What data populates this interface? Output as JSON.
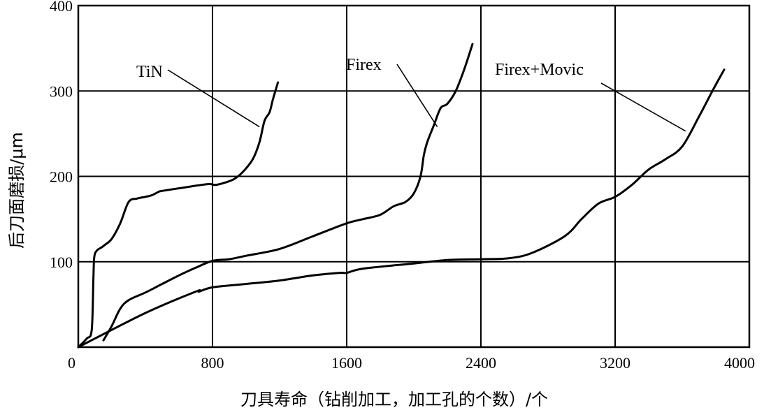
{
  "chart_data": {
    "type": "line",
    "xlabel": "刀具寿命（钻削加工，加工孔的个数）/个",
    "ylabel": "后刀面磨损/μm",
    "xlim": [
      0,
      4000
    ],
    "ylim": [
      0,
      400
    ],
    "x_ticks": [
      0,
      800,
      1600,
      2400,
      3200,
      4000
    ],
    "y_ticks": [
      100,
      200,
      300,
      400
    ],
    "x_tick_labels": [
      "0",
      "800",
      "1600",
      "2400",
      "3200",
      "4000"
    ],
    "y_tick_labels": [
      "100",
      "200",
      "300",
      "400"
    ],
    "grid": true,
    "series": [
      {
        "name": "TiN",
        "x": [
          0,
          50,
          80,
          90,
          95,
          110,
          140,
          160,
          200,
          250,
          300,
          350,
          400,
          440,
          480,
          500,
          600,
          700,
          780,
          820,
          880,
          930,
          980,
          1040,
          1080,
          1110,
          1140,
          1160,
          1190
        ],
        "y": [
          0,
          10,
          20,
          80,
          105,
          113,
          117,
          120,
          127,
          145,
          170,
          174,
          176,
          178,
          182,
          183,
          186,
          189,
          191,
          190,
          193,
          197,
          205,
          220,
          240,
          265,
          275,
          290,
          310
        ]
      },
      {
        "name": "Firex",
        "x": [
          150,
          200,
          250,
          300,
          400,
          500,
          600,
          700,
          800,
          900,
          1000,
          1200,
          1400,
          1600,
          1700,
          1800,
          1880,
          1950,
          2000,
          2040,
          2060,
          2080,
          2120,
          2160,
          2200,
          2250,
          2300,
          2350
        ],
        "y": [
          8,
          25,
          45,
          55,
          64,
          74,
          84,
          93,
          101,
          103,
          107,
          115,
          130,
          145,
          150,
          155,
          165,
          170,
          180,
          200,
          225,
          240,
          260,
          280,
          285,
          300,
          325,
          355
        ]
      },
      {
        "name": "Firex+Movic",
        "x": [
          0,
          400,
          700,
          720,
          800,
          1000,
          1200,
          1400,
          1560,
          1600,
          1700,
          2000,
          2200,
          2400,
          2560,
          2700,
          2900,
          3000,
          3100,
          3200,
          3300,
          3400,
          3500,
          3600,
          3700,
          3780,
          3850
        ],
        "y": [
          0,
          40,
          65,
          65,
          70,
          74,
          78,
          84,
          87,
          87,
          92,
          98,
          102,
          103,
          104,
          110,
          130,
          150,
          168,
          176,
          190,
          208,
          220,
          235,
          270,
          300,
          325
        ]
      }
    ],
    "annotations": [
      {
        "text": "TiN",
        "series": "TiN"
      },
      {
        "text": "Firex",
        "series": "Firex"
      },
      {
        "text": "Firex+Movic",
        "series": "Firex+Movic"
      }
    ]
  }
}
